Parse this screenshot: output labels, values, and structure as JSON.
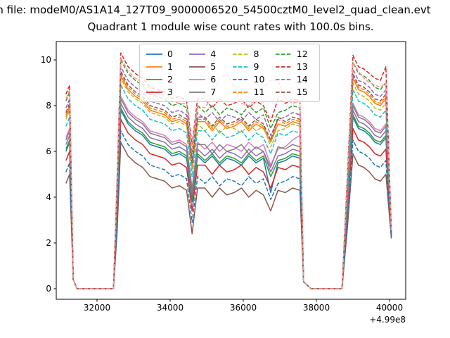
{
  "figure": {
    "suptitle": "from file: modeM0/AS1A14_127T09_9000006520_54500cztM0_level2_quad_clean.evt",
    "title": "Quadrant 1 module wise count rates with 100.0s bins."
  },
  "chart_data": {
    "type": "line",
    "title": "Quadrant 1 module wise count rates with 100.0s bins.",
    "xlabel": "",
    "ylabel": "",
    "grid": false,
    "legend_position": "upper center",
    "legend_ncol": 4,
    "x_ticks": [
      32000,
      34000,
      36000,
      38000,
      40000
    ],
    "y_ticks": [
      0,
      2,
      4,
      6,
      8,
      10
    ],
    "x_offset_text": "+4.99e8",
    "xlim": [
      30885,
      40442
    ],
    "ylim": [
      -0.46,
      10.8
    ],
    "x": [
      31150,
      31250,
      31350,
      31450,
      31550,
      31750,
      31950,
      32150,
      32350,
      32450,
      32550,
      32650,
      32850,
      33050,
      33250,
      33450,
      33650,
      33850,
      34050,
      34250,
      34450,
      34600,
      34750,
      34950,
      35150,
      35350,
      35550,
      35750,
      35950,
      36150,
      36350,
      36550,
      36750,
      36950,
      37150,
      37350,
      37550,
      37650,
      37850,
      38150,
      38450,
      38700,
      38850,
      39000,
      39150,
      39300,
      39450,
      39600,
      39750,
      39900,
      40050
    ],
    "series": [
      {
        "label": "0",
        "color": "#1f77b4",
        "linestyle": "solid",
        "y": [
          6.0,
          6.4,
          0.4,
          0,
          0,
          0,
          0,
          0,
          0,
          0,
          3.4,
          7.8,
          7.2,
          6.9,
          6.7,
          6.3,
          6.2,
          6.1,
          5.8,
          5.9,
          5.7,
          3.8,
          5.8,
          5.5,
          5.8,
          5.4,
          5.7,
          5.6,
          5.4,
          5.8,
          5.5,
          5.7,
          4.2,
          5.5,
          5.6,
          5.8,
          5.7,
          0.3,
          0,
          0,
          0,
          0,
          3.6,
          7.5,
          7.0,
          6.9,
          6.7,
          6.4,
          6.3,
          6.6,
          2.3
        ]
      },
      {
        "label": "1",
        "color": "#ff7f0e",
        "linestyle": "solid",
        "y": [
          7.5,
          7.9,
          0.4,
          0,
          0,
          0,
          0,
          0,
          0,
          0,
          4.3,
          9.3,
          8.7,
          8.4,
          8.2,
          7.8,
          7.7,
          7.6,
          7.3,
          7.4,
          7.2,
          5.3,
          7.3,
          7.3,
          6.9,
          7.3,
          7.0,
          7.1,
          7.3,
          6.9,
          7.2,
          7.0,
          6.4,
          7.2,
          7.1,
          7.3,
          7.2,
          0.3,
          0,
          0,
          0,
          0,
          4.5,
          9.2,
          8.7,
          8.6,
          8.4,
          8.1,
          8.0,
          8.3,
          2.4
        ]
      },
      {
        "label": "2",
        "color": "#2ca02c",
        "linestyle": "solid",
        "y": [
          6.1,
          6.5,
          0.4,
          0,
          0,
          0,
          0,
          0,
          0,
          0,
          3.4,
          7.9,
          7.3,
          7.0,
          6.8,
          6.4,
          6.3,
          6.2,
          5.9,
          6.0,
          5.8,
          3.9,
          5.9,
          5.6,
          5.9,
          5.5,
          5.8,
          5.7,
          5.5,
          5.9,
          5.6,
          5.8,
          4.9,
          5.6,
          5.7,
          5.9,
          5.8,
          0.3,
          0,
          0,
          0,
          0,
          3.6,
          7.6,
          7.1,
          7.0,
          6.8,
          6.5,
          6.4,
          6.7,
          2.3
        ]
      },
      {
        "label": "3",
        "color": "#d62728",
        "linestyle": "solid",
        "y": [
          5.6,
          6.0,
          0.4,
          0,
          0,
          0,
          0,
          0,
          0,
          0,
          3.1,
          7.4,
          6.8,
          6.5,
          6.3,
          5.9,
          5.8,
          5.7,
          5.4,
          5.5,
          5.3,
          3.4,
          5.4,
          5.4,
          5.0,
          5.4,
          5.1,
          5.2,
          5.4,
          5.0,
          5.3,
          5.1,
          4.4,
          5.3,
          5.2,
          5.4,
          5.3,
          0.3,
          0,
          0,
          0,
          0,
          3.3,
          7.0,
          6.5,
          6.4,
          6.2,
          5.9,
          5.8,
          6.1,
          2.3
        ]
      },
      {
        "label": "4",
        "color": "#9467bd",
        "linestyle": "solid",
        "y": [
          6.3,
          6.7,
          0.4,
          0,
          0,
          0,
          0,
          0,
          0,
          0,
          3.5,
          8.1,
          7.5,
          7.2,
          7.0,
          6.6,
          6.5,
          6.4,
          6.1,
          6.2,
          6.0,
          4.1,
          6.1,
          5.8,
          6.1,
          5.7,
          6.0,
          5.9,
          5.7,
          6.1,
          5.8,
          6.0,
          5.1,
          5.8,
          5.9,
          6.1,
          6.0,
          0.3,
          0,
          0,
          0,
          0,
          3.7,
          7.8,
          7.3,
          7.2,
          7.0,
          6.7,
          6.6,
          6.9,
          2.4
        ]
      },
      {
        "label": "5",
        "color": "#8c564b",
        "linestyle": "solid",
        "y": [
          4.6,
          5.0,
          0.4,
          0,
          0,
          0,
          0,
          0,
          0,
          0,
          2.5,
          6.4,
          5.8,
          5.5,
          5.3,
          4.9,
          4.8,
          4.7,
          4.4,
          4.5,
          4.3,
          2.4,
          4.4,
          4.4,
          4.0,
          4.4,
          4.1,
          4.2,
          4.4,
          4.0,
          4.3,
          4.1,
          3.4,
          4.3,
          4.2,
          4.4,
          4.3,
          0.3,
          0,
          0,
          0,
          0,
          2.7,
          5.9,
          5.4,
          5.3,
          5.1,
          4.8,
          4.7,
          5.0,
          2.2
        ]
      },
      {
        "label": "6",
        "color": "#e377c2",
        "linestyle": "solid",
        "y": [
          6.6,
          7.0,
          0.4,
          0,
          0,
          0,
          0,
          0,
          0,
          0,
          3.7,
          8.4,
          7.8,
          7.5,
          7.3,
          6.9,
          6.8,
          6.7,
          6.4,
          6.5,
          6.3,
          4.4,
          6.4,
          6.1,
          6.4,
          6.0,
          6.3,
          6.2,
          6.0,
          6.4,
          6.1,
          6.3,
          5.4,
          6.1,
          6.2,
          6.5,
          6.7,
          0.3,
          0,
          0,
          0,
          0,
          3.9,
          8.1,
          7.6,
          7.5,
          7.3,
          7.0,
          6.9,
          7.2,
          2.4
        ]
      },
      {
        "label": "7",
        "color": "#7f7f7f",
        "linestyle": "solid",
        "y": [
          6.5,
          6.9,
          0.4,
          0,
          0,
          0,
          0,
          0,
          0,
          0,
          3.7,
          8.3,
          7.7,
          7.4,
          7.2,
          6.8,
          6.7,
          6.6,
          6.3,
          6.4,
          6.2,
          4.3,
          6.3,
          6.3,
          5.9,
          6.3,
          6.0,
          6.1,
          6.3,
          5.9,
          6.2,
          6.0,
          5.3,
          6.2,
          6.1,
          6.3,
          6.2,
          0.3,
          0,
          0,
          0,
          0,
          3.9,
          8.0,
          7.5,
          7.4,
          7.2,
          6.9,
          6.8,
          7.1,
          2.4
        ]
      },
      {
        "label": "8",
        "color": "#bcbd22",
        "linestyle": "dashed",
        "y": [
          7.4,
          7.8,
          0.4,
          0,
          0,
          0,
          0,
          0,
          0,
          0,
          4.2,
          9.2,
          8.6,
          8.3,
          8.1,
          7.7,
          7.6,
          7.5,
          7.2,
          7.3,
          7.1,
          5.2,
          7.2,
          6.9,
          7.2,
          6.8,
          7.1,
          7.0,
          6.8,
          7.2,
          6.9,
          7.1,
          6.2,
          6.9,
          7.0,
          7.2,
          7.1,
          0.3,
          0,
          0,
          0,
          0,
          4.4,
          9.0,
          8.5,
          8.4,
          8.2,
          7.9,
          7.8,
          8.1,
          2.5
        ]
      },
      {
        "label": "9",
        "color": "#17becf",
        "linestyle": "dashed",
        "y": [
          7.1,
          7.5,
          0.4,
          0,
          0,
          0,
          0,
          0,
          0,
          0,
          4.0,
          8.9,
          8.3,
          8.0,
          7.8,
          7.4,
          7.3,
          7.2,
          6.9,
          7.0,
          6.8,
          4.9,
          6.9,
          6.9,
          6.5,
          6.9,
          6.6,
          6.7,
          6.9,
          6.5,
          6.8,
          6.6,
          5.9,
          6.8,
          6.7,
          6.9,
          6.8,
          0.3,
          0,
          0,
          0,
          0,
          4.2,
          8.7,
          8.2,
          8.1,
          7.9,
          7.6,
          7.5,
          7.8,
          2.5
        ]
      },
      {
        "label": "10",
        "color": "#1f77b4",
        "linestyle": "dashed",
        "y": [
          5.1,
          5.5,
          0.4,
          0,
          0,
          0,
          0,
          0,
          0,
          0,
          2.8,
          6.9,
          6.3,
          6.0,
          5.8,
          5.4,
          5.3,
          5.2,
          4.9,
          5.0,
          4.8,
          2.9,
          4.9,
          4.6,
          4.9,
          4.5,
          4.8,
          4.7,
          4.5,
          4.9,
          4.6,
          4.8,
          3.9,
          4.6,
          4.7,
          4.9,
          4.8,
          0.3,
          0,
          0,
          0,
          0,
          3.0,
          6.5,
          6.0,
          5.9,
          5.7,
          5.4,
          5.3,
          5.6,
          2.2
        ]
      },
      {
        "label": "11",
        "color": "#ff7f0e",
        "linestyle": "dashed",
        "y": [
          7.6,
          8.0,
          0.4,
          0,
          0,
          0,
          0,
          0,
          0,
          0,
          4.3,
          9.4,
          8.8,
          8.5,
          8.3,
          7.9,
          7.8,
          7.7,
          7.4,
          7.5,
          7.3,
          5.4,
          7.4,
          7.4,
          7.0,
          7.4,
          7.1,
          7.2,
          7.4,
          7.0,
          7.3,
          7.1,
          6.4,
          7.4,
          7.2,
          7.4,
          7.3,
          0.3,
          0,
          0,
          0,
          0,
          4.6,
          9.3,
          8.8,
          8.7,
          8.5,
          8.2,
          8.1,
          8.4,
          2.5
        ]
      },
      {
        "label": "12",
        "color": "#2ca02c",
        "linestyle": "dashed",
        "y": [
          8.2,
          8.6,
          0.4,
          0,
          0,
          0,
          0,
          0,
          0,
          0,
          4.7,
          10.0,
          9.4,
          9.1,
          8.9,
          8.5,
          8.4,
          8.3,
          8.0,
          8.1,
          7.9,
          6.0,
          8.0,
          7.7,
          8.0,
          7.6,
          7.9,
          7.8,
          7.6,
          8.0,
          7.7,
          7.9,
          7.0,
          7.7,
          7.8,
          8.0,
          7.9,
          0.3,
          0,
          0,
          0,
          0,
          4.9,
          9.9,
          9.4,
          9.3,
          9.1,
          8.8,
          8.7,
          9.0,
          2.5
        ]
      },
      {
        "label": "13",
        "color": "#d62728",
        "linestyle": "dashed",
        "y": [
          8.5,
          8.9,
          0.4,
          0,
          0,
          0,
          0,
          0,
          0,
          0,
          4.9,
          10.3,
          9.7,
          9.4,
          9.2,
          8.8,
          8.7,
          8.6,
          8.3,
          8.4,
          8.2,
          6.3,
          8.3,
          8.3,
          7.9,
          8.3,
          8.0,
          8.1,
          8.3,
          7.9,
          8.2,
          8.0,
          7.3,
          8.3,
          8.1,
          8.3,
          8.2,
          0.3,
          0,
          0,
          0,
          0,
          5.1,
          10.2,
          9.7,
          9.6,
          9.4,
          9.2,
          9.1,
          9.7,
          2.6
        ]
      },
      {
        "label": "14",
        "color": "#9467bd",
        "linestyle": "dashed",
        "y": [
          7.9,
          8.3,
          0.4,
          0,
          0,
          0,
          0,
          0,
          0,
          0,
          4.5,
          9.7,
          9.1,
          8.8,
          8.6,
          8.2,
          8.1,
          8.0,
          7.7,
          7.8,
          7.6,
          5.7,
          7.7,
          7.4,
          7.7,
          7.3,
          7.6,
          7.5,
          7.3,
          7.7,
          7.4,
          7.6,
          6.7,
          7.4,
          7.5,
          7.7,
          7.6,
          0.3,
          0,
          0,
          0,
          0,
          4.7,
          9.6,
          9.1,
          9.0,
          8.8,
          8.5,
          8.4,
          8.7,
          2.5
        ]
      },
      {
        "label": "15",
        "color": "#8c564b",
        "linestyle": "dashed",
        "y": [
          7.7,
          8.1,
          0.4,
          0,
          0,
          0,
          0,
          0,
          0,
          0,
          4.4,
          9.5,
          8.9,
          8.6,
          8.4,
          8.0,
          7.9,
          7.8,
          7.5,
          7.6,
          7.4,
          5.5,
          7.5,
          7.5,
          7.1,
          7.5,
          7.2,
          7.3,
          7.5,
          7.1,
          7.4,
          7.2,
          6.5,
          7.5,
          7.3,
          7.5,
          7.4,
          0.3,
          0,
          0,
          0,
          0,
          4.6,
          9.4,
          8.9,
          8.8,
          8.6,
          8.3,
          8.2,
          8.5,
          2.5
        ]
      },
      {
        "label": "",
        "color": "#ff9896",
        "linestyle": "dashed",
        "y": [
          8.3,
          8.7,
          0.4,
          0,
          0,
          0,
          0,
          0,
          0,
          0,
          4.8,
          10.1,
          9.5,
          9.2,
          9.0,
          8.7,
          8.5,
          8.4,
          8.2,
          8.1,
          8.1,
          6.1,
          8.0,
          7.9,
          8.4,
          9.2,
          9.4,
          8.8,
          8.1,
          8.0,
          8.3,
          8.8,
          9.1,
          9.1,
          8.3,
          8.1,
          8.2,
          0.3,
          0,
          0,
          0,
          0,
          4.9,
          9.9,
          9.5,
          9.2,
          9.0,
          8.9,
          8.8,
          9.0,
          2.5
        ]
      }
    ]
  }
}
